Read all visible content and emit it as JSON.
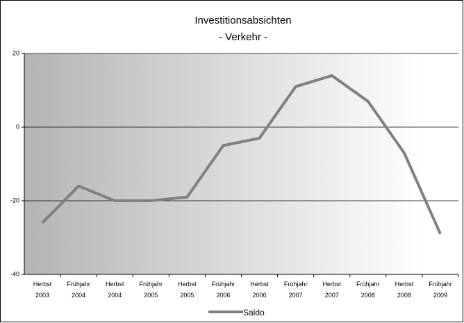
{
  "chart_data": {
    "type": "line",
    "title": "Investitionsabsichten",
    "subtitle": "- Verkehr -",
    "categories": [
      "Herbst 2003",
      "Frühjahr 2004",
      "Herbst 2004",
      "Frühjahr 2005",
      "Herbst 2005",
      "Frühjahr 2006",
      "Herbst 2006",
      "Frühjahr 2007",
      "Herbst 2007",
      "Frühjahr 2008",
      "Herbst 2008",
      "Frühjahr 2009"
    ],
    "series": [
      {
        "name": "Saldo",
        "color": "#808080",
        "values": [
          -26,
          -16,
          -20,
          -20,
          -19,
          -5,
          -3,
          11,
          14,
          7,
          -7,
          -29
        ]
      }
    ],
    "ylim": [
      -40,
      20
    ],
    "yticks": [
      -40,
      -20,
      0,
      20
    ],
    "grid": true
  }
}
